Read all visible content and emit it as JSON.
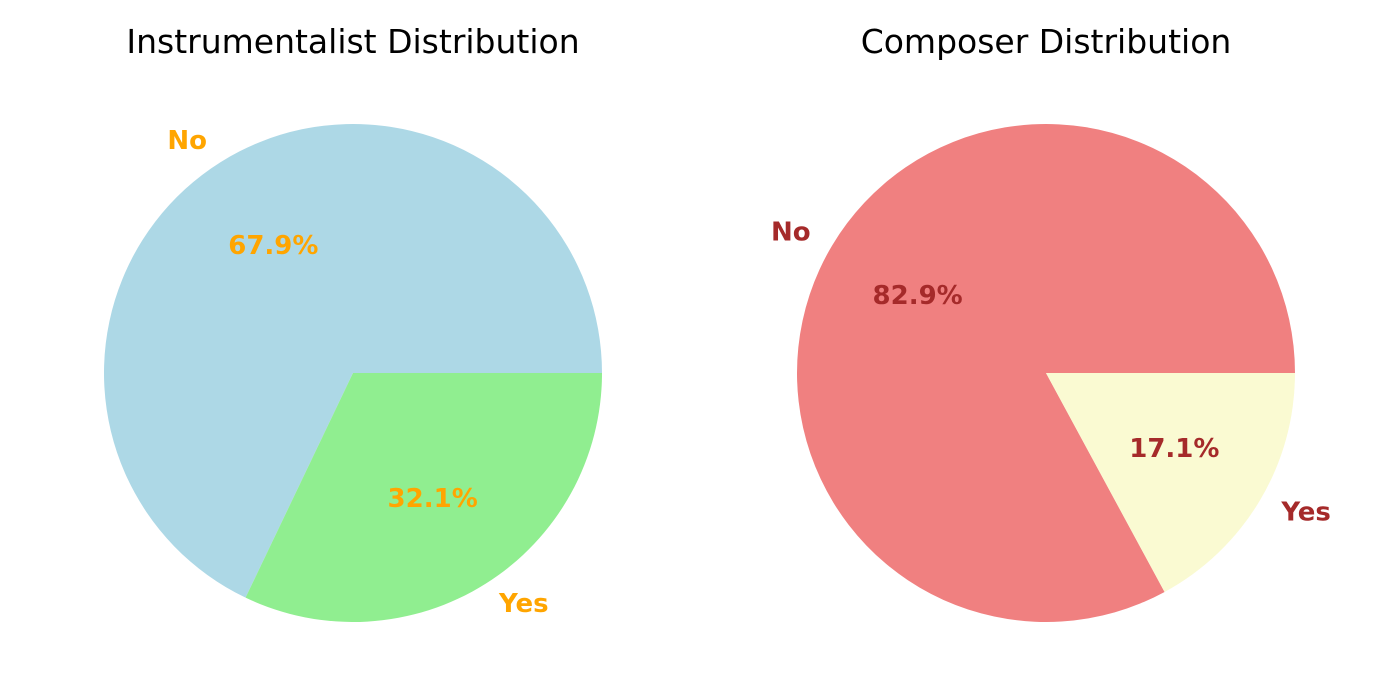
{
  "chart_data": [
    {
      "type": "pie",
      "title": "Instrumentalist Distribution",
      "slices": [
        {
          "label": "No",
          "value": 67.9,
          "pct_label": "67.9%",
          "color": "#add8e6"
        },
        {
          "label": "Yes",
          "value": 32.1,
          "pct_label": "32.1%",
          "color": "#90ee90"
        }
      ],
      "text_color": "#ffa500",
      "start_angle": 0,
      "direction": "counterclockwise"
    },
    {
      "type": "pie",
      "title": "Composer Distribution",
      "slices": [
        {
          "label": "No",
          "value": 82.9,
          "pct_label": "82.9%",
          "color": "#f08080"
        },
        {
          "label": "Yes",
          "value": 17.1,
          "pct_label": "17.1%",
          "color": "#fafad2"
        }
      ],
      "text_color": "#a52a2a",
      "start_angle": 0,
      "direction": "counterclockwise"
    }
  ]
}
